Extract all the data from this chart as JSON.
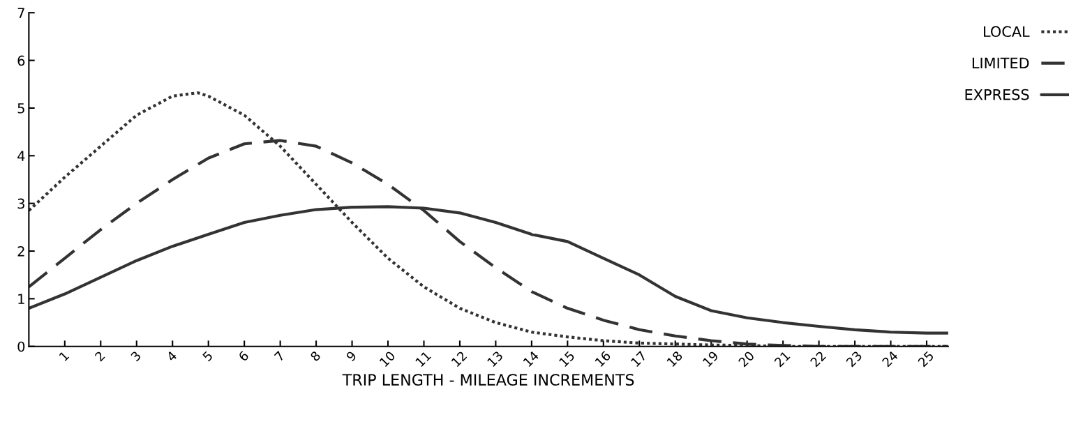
{
  "chart_data": {
    "type": "line",
    "xlabel": "TRIP LENGTH - MILEAGE INCREMENTS",
    "xlim": [
      0,
      25.6
    ],
    "xticks": [
      1,
      2,
      3,
      4,
      5,
      6,
      7,
      8,
      9,
      10,
      11,
      12,
      13,
      14,
      15,
      16,
      17,
      18,
      19,
      20,
      21,
      22,
      23,
      24,
      25
    ],
    "ylim": [
      0,
      7
    ],
    "yticks": [
      0,
      1,
      2,
      3,
      4,
      5,
      6,
      7
    ],
    "grid": false,
    "legend": "right",
    "marker": "none",
    "series": [
      {
        "name": "LOCAL",
        "color": "#333333",
        "line_style": "dotted",
        "x": [
          0,
          1,
          2,
          3,
          4,
          4.7,
          5,
          6,
          7,
          8,
          9,
          10,
          11,
          12,
          13,
          14,
          15,
          16,
          17,
          18,
          19,
          20,
          21,
          22,
          23,
          24,
          25,
          25.6
        ],
        "values": [
          2.85,
          3.55,
          4.2,
          4.85,
          5.25,
          5.32,
          5.25,
          4.85,
          4.2,
          3.4,
          2.6,
          1.85,
          1.25,
          0.8,
          0.5,
          0.3,
          0.2,
          0.12,
          0.07,
          0.05,
          0.03,
          0.02,
          0.0,
          0.0,
          0.0,
          0.0,
          0.0,
          0.0
        ]
      },
      {
        "name": "LIMITED",
        "color": "#333333",
        "line_style": "dashed",
        "x": [
          0,
          1,
          2,
          3,
          4,
          5,
          6,
          7,
          8,
          9,
          10,
          11,
          12,
          13,
          14,
          15,
          16,
          17,
          18,
          19,
          20,
          21,
          22,
          23,
          24,
          25,
          25.6
        ],
        "values": [
          1.25,
          1.85,
          2.45,
          3.0,
          3.5,
          3.95,
          4.25,
          4.32,
          4.2,
          3.85,
          3.4,
          2.85,
          2.2,
          1.65,
          1.15,
          0.8,
          0.55,
          0.35,
          0.22,
          0.12,
          0.05,
          0.02,
          0.0,
          0.0,
          0.0,
          0.0,
          0.0
        ]
      },
      {
        "name": "EXPRESS",
        "color": "#333333",
        "line_style": "solid",
        "x": [
          0,
          1,
          2,
          3,
          4,
          5,
          6,
          7,
          8,
          9,
          10,
          11,
          12,
          13,
          14,
          15,
          16,
          17,
          18,
          19,
          20,
          21,
          22,
          23,
          24,
          25,
          25.6
        ],
        "values": [
          0.8,
          1.1,
          1.45,
          1.8,
          2.1,
          2.35,
          2.6,
          2.75,
          2.87,
          2.92,
          2.93,
          2.9,
          2.8,
          2.6,
          2.35,
          2.2,
          1.85,
          1.5,
          1.05,
          0.75,
          0.6,
          0.5,
          0.42,
          0.35,
          0.3,
          0.28,
          0.28
        ]
      }
    ]
  }
}
